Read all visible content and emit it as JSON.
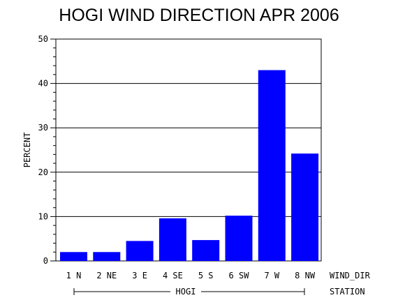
{
  "chart_data": {
    "type": "bar",
    "title": "HOGI WIND DIRECTION APR 2006",
    "ylabel": "PERCENT",
    "xlabel": "WIND_DIR",
    "group_axis_label": "STATION",
    "group_label": "HOGI",
    "categories": [
      "1 N",
      "2 NE",
      "3 E",
      "4 SE",
      "5 S",
      "6 SW",
      "7 W",
      "8 NW"
    ],
    "values": [
      2.0,
      2.0,
      4.5,
      9.6,
      4.7,
      10.2,
      43.0,
      24.2
    ],
    "ylim": [
      0,
      50
    ],
    "yticks": [
      0,
      10,
      20,
      30,
      40,
      50
    ],
    "grid": true,
    "bar_color": "#0000ff"
  }
}
